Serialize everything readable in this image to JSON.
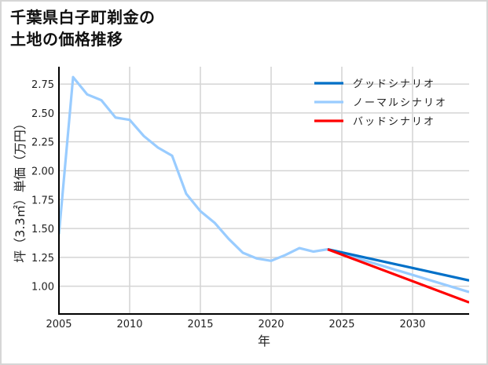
{
  "title": {
    "line1": "千葉県白子町剃金の",
    "line2": "土地の価格推移"
  },
  "chart_data": {
    "type": "line",
    "title": "千葉県白子町剃金の土地の価格推移",
    "xlabel": "年",
    "ylabel": "坪（3.3㎡）単価（万円）",
    "xlim": [
      2005,
      2034
    ],
    "ylim": [
      0.76,
      2.9
    ],
    "grid": true,
    "legend_position": "upper right",
    "x_ticks": [
      2005,
      2010,
      2015,
      2020,
      2025,
      2030
    ],
    "y_ticks": [
      1.0,
      1.25,
      1.5,
      1.75,
      2.0,
      2.25,
      2.5,
      2.75
    ],
    "x_tick_labels": [
      "2005",
      "2010",
      "2015",
      "2020",
      "2025",
      "2030"
    ],
    "y_tick_labels": [
      "1.00",
      "1.25",
      "1.50",
      "1.75",
      "2.00",
      "2.25",
      "2.50",
      "2.75"
    ],
    "series": [
      {
        "name": "グッドシナリオ",
        "color": "#0070c8",
        "x": [
          2024,
          2034
        ],
        "values": [
          1.32,
          1.05
        ]
      },
      {
        "name": "ノーマルシナリオ",
        "color": "#99ccff",
        "x": [
          2005,
          2006,
          2007,
          2008,
          2009,
          2010,
          2011,
          2012,
          2013,
          2014,
          2015,
          2016,
          2017,
          2018,
          2019,
          2020,
          2021,
          2022,
          2023,
          2024,
          2034
        ],
        "values": [
          1.45,
          2.81,
          2.66,
          2.61,
          2.46,
          2.44,
          2.3,
          2.2,
          2.13,
          1.8,
          1.65,
          1.55,
          1.41,
          1.29,
          1.24,
          1.22,
          1.27,
          1.33,
          1.3,
          1.32,
          0.95
        ]
      },
      {
        "name": "バッドシナリオ",
        "color": "#ff0000",
        "x": [
          2024,
          2034
        ],
        "values": [
          1.32,
          0.86
        ]
      }
    ]
  }
}
